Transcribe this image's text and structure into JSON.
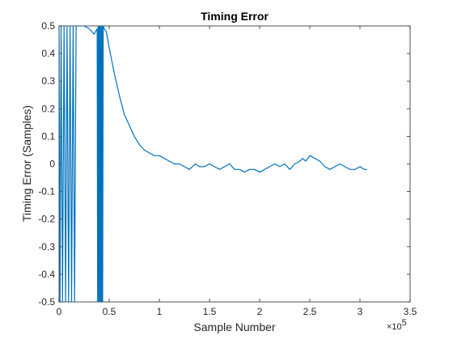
{
  "chart_data": {
    "type": "line",
    "title": "Timing Error",
    "xlabel": "Sample Number",
    "ylabel": "Timing Error (Samples)",
    "x_exponent_label": "×10",
    "x_exponent_power": "5",
    "xlim": [
      0,
      3.5
    ],
    "ylim": [
      -0.5,
      0.5
    ],
    "x_ticks": [
      0,
      0.5,
      1,
      1.5,
      2,
      2.5,
      3,
      3.5
    ],
    "x_tick_labels": [
      "0",
      "0.5",
      "1",
      "1.5",
      "2",
      "2.5",
      "3",
      "3.5"
    ],
    "y_ticks": [
      -0.5,
      -0.4,
      -0.3,
      -0.2,
      -0.1,
      0,
      0.1,
      0.2,
      0.3,
      0.4,
      0.5
    ],
    "y_tick_labels": [
      "-0.5",
      "-0.4",
      "-0.3",
      "-0.2",
      "-0.1",
      "0",
      "0.1",
      "0.2",
      "0.3",
      "0.4",
      "0.5"
    ],
    "grid": false,
    "line_color": "#0072BD",
    "series": [
      {
        "x": [
          0,
          0.01,
          0.02,
          0.035,
          0.05,
          0.065,
          0.08,
          0.095,
          0.11,
          0.125,
          0.14,
          0.155,
          0.17,
          0.2,
          0.25,
          0.3,
          0.35,
          0.38,
          0.385,
          0.39,
          0.395,
          0.4,
          0.405,
          0.41,
          0.415,
          0.42,
          0.425,
          0.43,
          0.435,
          0.44,
          0.45,
          0.47,
          0.5,
          0.55,
          0.6,
          0.65,
          0.7,
          0.75,
          0.8,
          0.85,
          0.9,
          0.95,
          1.0,
          1.05,
          1.1,
          1.15,
          1.2,
          1.25,
          1.3,
          1.33,
          1.36,
          1.4,
          1.45,
          1.5,
          1.55,
          1.6,
          1.65,
          1.7,
          1.75,
          1.8,
          1.85,
          1.9,
          1.95,
          2.0,
          2.05,
          2.1,
          2.15,
          2.2,
          2.25,
          2.3,
          2.35,
          2.4,
          2.43,
          2.46,
          2.5,
          2.55,
          2.6,
          2.65,
          2.7,
          2.75,
          2.8,
          2.85,
          2.9,
          2.95,
          3.0,
          3.04,
          3.07
        ],
        "y": [
          0.5,
          -0.5,
          0.5,
          -0.5,
          0.5,
          -0.5,
          0.5,
          -0.5,
          0.5,
          -0.5,
          0.5,
          -0.5,
          0.5,
          0.5,
          0.5,
          0.49,
          0.47,
          0.49,
          -0.5,
          0.5,
          -0.5,
          0.5,
          -0.5,
          0.5,
          -0.5,
          0.5,
          -0.5,
          0.5,
          -0.5,
          0.5,
          0.49,
          0.48,
          0.42,
          0.33,
          0.25,
          0.18,
          0.14,
          0.1,
          0.07,
          0.05,
          0.04,
          0.03,
          0.03,
          0.02,
          0.01,
          0.0,
          0.0,
          -0.01,
          -0.02,
          -0.01,
          0.0,
          -0.01,
          -0.01,
          0.0,
          -0.01,
          -0.02,
          -0.01,
          0.0,
          -0.02,
          -0.02,
          -0.03,
          -0.02,
          -0.02,
          -0.03,
          -0.02,
          -0.01,
          0.0,
          -0.01,
          0.0,
          -0.02,
          0.0,
          0.01,
          0.02,
          0.01,
          0.03,
          0.02,
          0.01,
          -0.01,
          -0.02,
          -0.01,
          0.0,
          -0.01,
          -0.02,
          -0.02,
          -0.01,
          -0.02,
          -0.02
        ]
      }
    ]
  }
}
